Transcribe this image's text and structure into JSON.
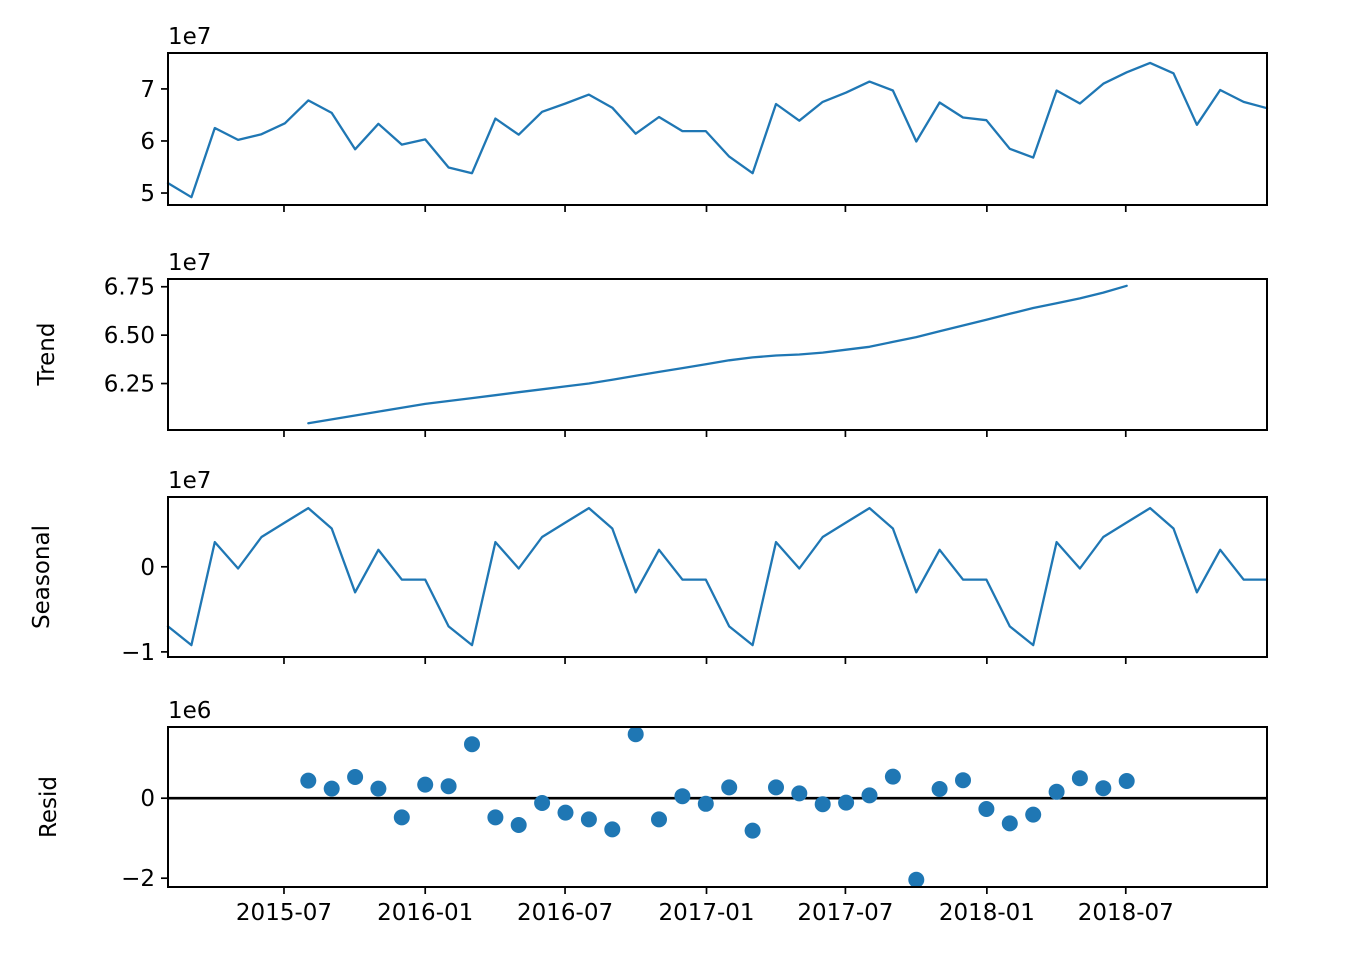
{
  "figure": {
    "kind": "seasonal-decomposition-plot",
    "background": "#ffffff",
    "line_color": "#1f77b4",
    "marker_color": "#1f77b4",
    "axis_color": "#000000",
    "zero_line_color": "#000000"
  },
  "x_dates": [
    "2015-01",
    "2015-02",
    "2015-03",
    "2015-04",
    "2015-05",
    "2015-06",
    "2015-07",
    "2015-08",
    "2015-09",
    "2015-10",
    "2015-11",
    "2015-12",
    "2016-01",
    "2016-02",
    "2016-03",
    "2016-04",
    "2016-05",
    "2016-06",
    "2016-07",
    "2016-08",
    "2016-09",
    "2016-10",
    "2016-11",
    "2016-12",
    "2017-01",
    "2017-02",
    "2017-03",
    "2017-04",
    "2017-05",
    "2017-06",
    "2017-07",
    "2017-08",
    "2017-09",
    "2017-10",
    "2017-11",
    "2017-12",
    "2018-01",
    "2018-02",
    "2018-03",
    "2018-04",
    "2018-05",
    "2018-06",
    "2018-07",
    "2018-08",
    "2018-09",
    "2018-10",
    "2018-11",
    "2018-12"
  ],
  "x_axis": {
    "tick_labels": [
      "2015-07",
      "2016-01",
      "2016-07",
      "2017-01",
      "2017-07",
      "2018-01",
      "2018-07"
    ],
    "tick_index": [
      4.96,
      11.0,
      16.98,
      23.03,
      28.97,
      35.02,
      40.96
    ]
  },
  "chart_data": [
    {
      "name": "observed",
      "type": "line",
      "ylabel": "",
      "unit_offset_text": "1e7",
      "ylim": [
        4.77,
        7.69
      ],
      "yticks": [
        {
          "v": 5,
          "label": "5"
        },
        {
          "v": 6,
          "label": "6"
        },
        {
          "v": 7,
          "label": "7"
        }
      ],
      "values": [
        5.19,
        4.92,
        6.25,
        6.02,
        6.13,
        6.34,
        6.78,
        6.54,
        5.84,
        6.33,
        5.93,
        6.03,
        5.49,
        5.38,
        6.43,
        6.12,
        6.56,
        6.72,
        6.89,
        6.64,
        6.14,
        6.46,
        6.19,
        6.19,
        5.7,
        5.38,
        6.71,
        6.39,
        6.75,
        6.93,
        7.14,
        6.97,
        5.99,
        6.74,
        6.45,
        6.4,
        5.85,
        5.68,
        6.97,
        6.72,
        7.1,
        7.32,
        7.5,
        7.3,
        6.31,
        6.98,
        6.75,
        6.63
      ]
    },
    {
      "name": "trend",
      "type": "line",
      "ylabel": "Trend",
      "unit_offset_text": "1e7",
      "ylim": [
        6.01,
        6.79
      ],
      "yticks": [
        {
          "v": 6.25,
          "label": "6.25"
        },
        {
          "v": 6.5,
          "label": "6.50"
        },
        {
          "v": 6.75,
          "label": "6.75"
        }
      ],
      "values": [
        null,
        null,
        null,
        null,
        null,
        null,
        6.045,
        6.065,
        6.085,
        6.105,
        6.125,
        6.145,
        6.16,
        6.175,
        6.19,
        6.205,
        6.22,
        6.235,
        6.25,
        6.27,
        6.29,
        6.31,
        6.33,
        6.35,
        6.37,
        6.385,
        6.395,
        6.4,
        6.41,
        6.425,
        6.44,
        6.465,
        6.49,
        6.52,
        6.55,
        6.58,
        6.61,
        6.64,
        6.665,
        6.69,
        6.72,
        6.755,
        null,
        null,
        null,
        null,
        null,
        null
      ]
    },
    {
      "name": "seasonal",
      "type": "line",
      "ylabel": "Seasonal",
      "unit_offset_text": "1e7",
      "ylim": [
        -1.06,
        0.82
      ],
      "yticks": [
        {
          "v": -1,
          "label": "−1"
        },
        {
          "v": 0,
          "label": "0"
        }
      ],
      "values": [
        -0.7,
        -0.92,
        0.29,
        -0.02,
        0.35,
        0.52,
        0.69,
        0.45,
        -0.3,
        0.2,
        -0.15,
        -0.15,
        -0.7,
        -0.92,
        0.29,
        -0.02,
        0.35,
        0.52,
        0.69,
        0.45,
        -0.3,
        0.2,
        -0.15,
        -0.15,
        -0.7,
        -0.92,
        0.29,
        -0.02,
        0.35,
        0.52,
        0.69,
        0.45,
        -0.3,
        0.2,
        -0.15,
        -0.15,
        -0.7,
        -0.92,
        0.29,
        -0.02,
        0.35,
        0.52,
        0.69,
        0.45,
        -0.3,
        0.2,
        -0.15,
        -0.15
      ]
    },
    {
      "name": "resid",
      "type": "scatter",
      "ylabel": "Resid",
      "unit_offset_text": "1e6",
      "ylim": [
        -2.22,
        1.78
      ],
      "yticks": [
        {
          "v": -2,
          "label": "−2"
        },
        {
          "v": 0,
          "label": "0"
        }
      ],
      "zero_line": 0,
      "values": [
        null,
        null,
        null,
        null,
        null,
        null,
        0.44,
        0.24,
        0.53,
        0.24,
        -0.48,
        0.34,
        0.3,
        1.35,
        -0.48,
        -0.67,
        -0.12,
        -0.36,
        -0.53,
        -0.78,
        1.6,
        -0.53,
        0.05,
        -0.14,
        0.27,
        -0.81,
        0.27,
        0.12,
        -0.15,
        -0.11,
        0.07,
        0.54,
        -2.04,
        0.23,
        0.45,
        -0.27,
        -0.63,
        -0.41,
        0.16,
        0.5,
        0.25,
        0.43,
        null,
        null,
        null,
        null,
        null,
        null
      ]
    }
  ]
}
